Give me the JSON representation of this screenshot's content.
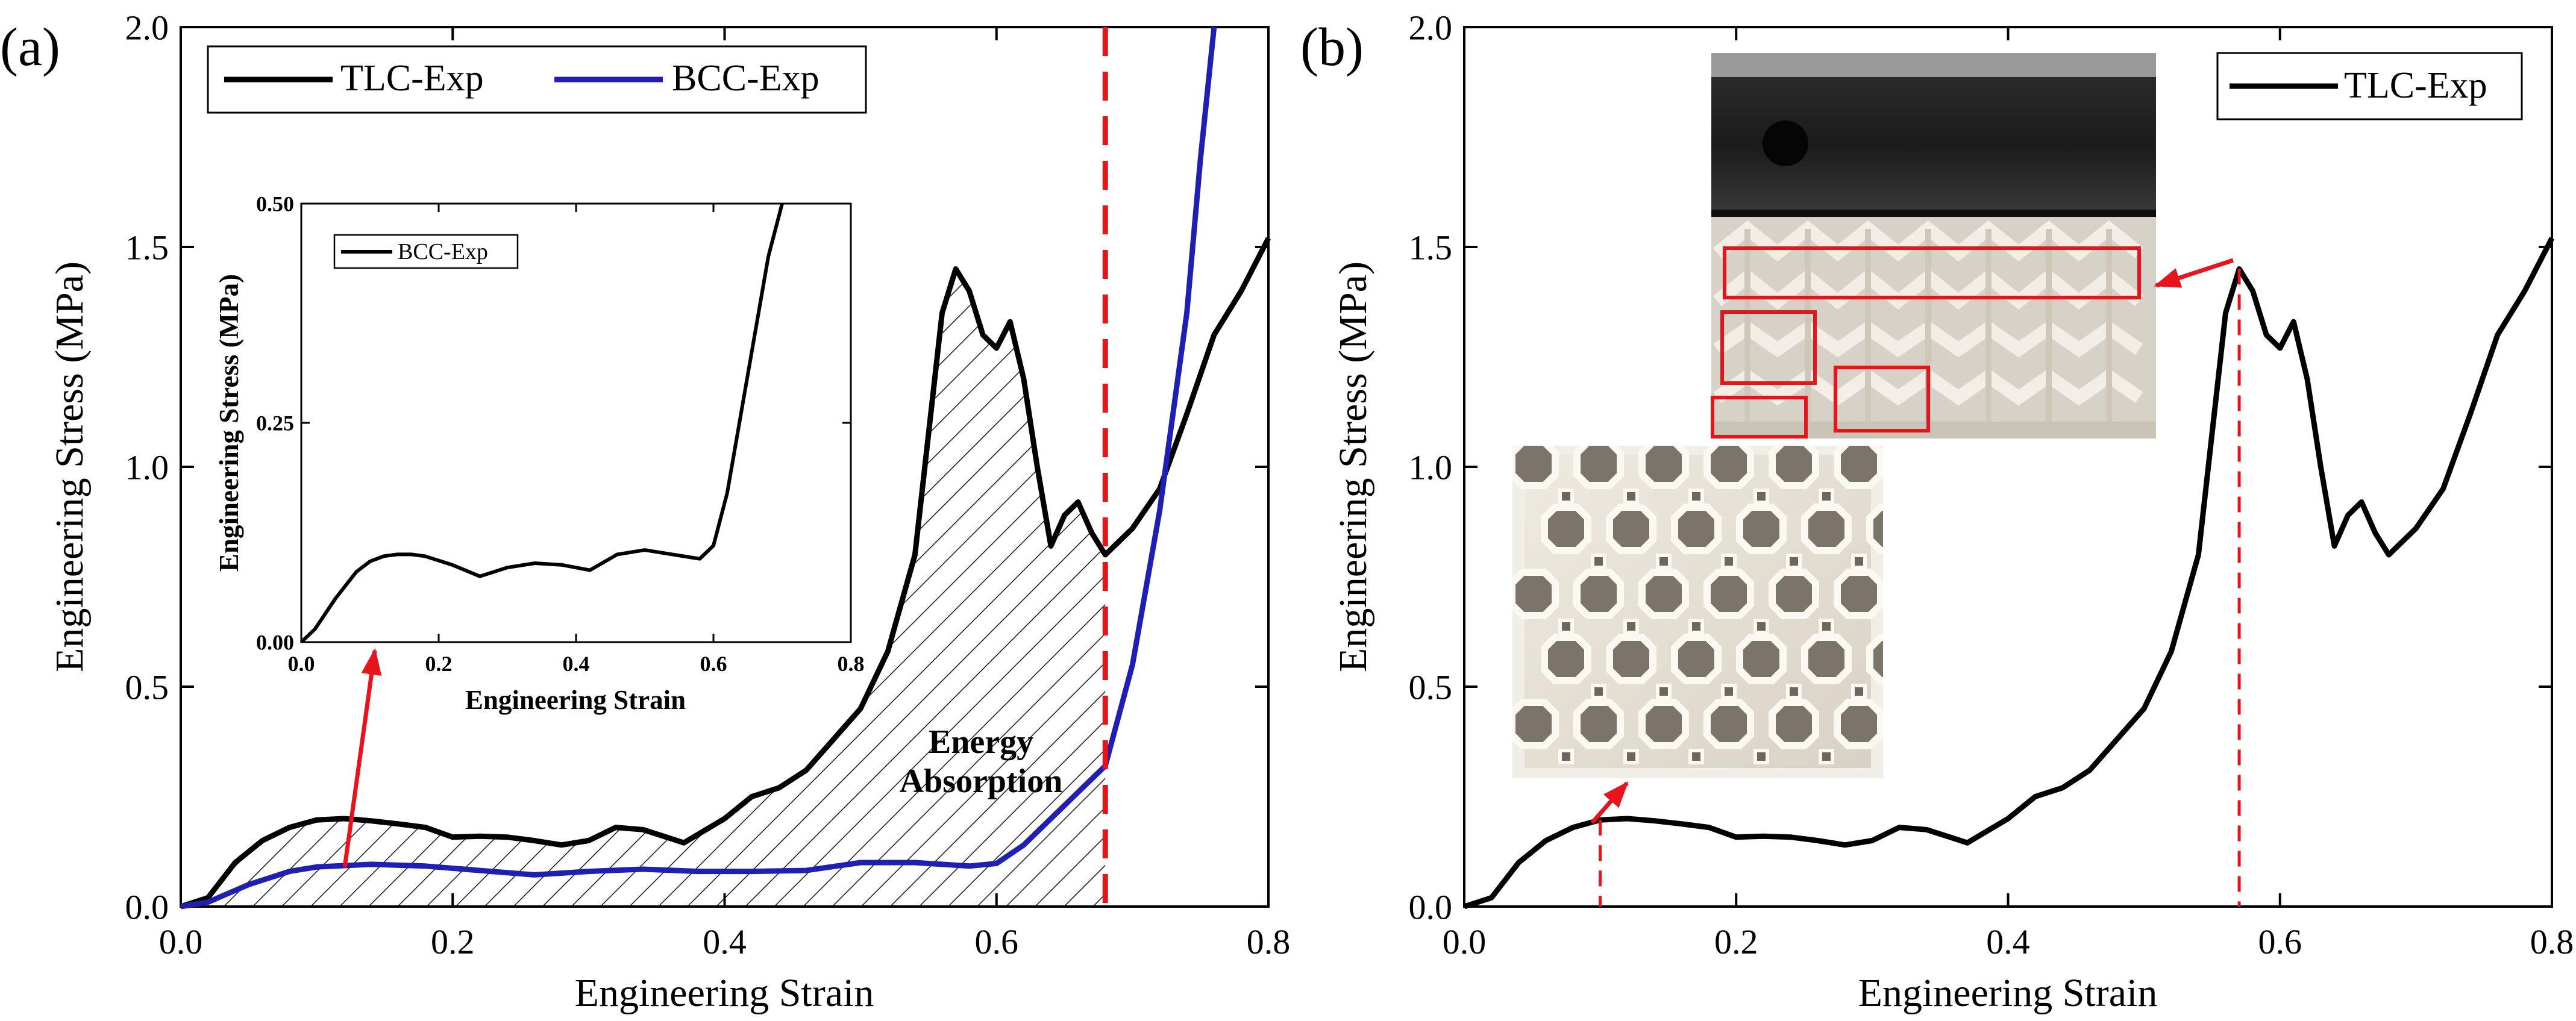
{
  "figure": {
    "description_labels": [
      "(a)",
      "(b)"
    ]
  },
  "chart_data": [
    {
      "panel": "(a)",
      "type": "line",
      "xlabel": "Engineering Strain",
      "ylabel": "Engineering Stress (MPa)",
      "xlim": [
        0,
        0.8
      ],
      "ylim": [
        0,
        2.0
      ],
      "xticks": [
        "0.0",
        "0.2",
        "0.4",
        "0.6",
        "0.8"
      ],
      "yticks": [
        "0.0",
        "0.5",
        "1.0",
        "1.5",
        "2.0"
      ],
      "legend": [
        "TLC-Exp",
        "BCC-Exp"
      ],
      "legend_position": "top-left",
      "annotations": [
        "Energy",
        "Absorption"
      ],
      "reference_line_x": 0.68,
      "shaded_region": "area under TLC-Exp curve up to 0.68 strain, hatched",
      "series": [
        {
          "name": "TLC-Exp",
          "color": "#000000",
          "x": [
            0,
            0.02,
            0.04,
            0.06,
            0.08,
            0.1,
            0.12,
            0.14,
            0.16,
            0.18,
            0.2,
            0.22,
            0.24,
            0.26,
            0.28,
            0.3,
            0.32,
            0.34,
            0.36,
            0.37,
            0.4,
            0.42,
            0.44,
            0.46,
            0.48,
            0.5,
            0.52,
            0.54,
            0.56,
            0.57,
            0.58,
            0.59,
            0.6,
            0.61,
            0.62,
            0.63,
            0.64,
            0.65,
            0.66,
            0.67,
            0.68,
            0.7,
            0.72,
            0.74,
            0.76,
            0.78,
            0.8
          ],
          "y": [
            0,
            0.02,
            0.1,
            0.15,
            0.18,
            0.197,
            0.2,
            0.195,
            0.188,
            0.18,
            0.158,
            0.16,
            0.158,
            0.15,
            0.14,
            0.15,
            0.18,
            0.175,
            0.155,
            0.145,
            0.2,
            0.25,
            0.27,
            0.31,
            0.38,
            0.45,
            0.58,
            0.8,
            1.35,
            1.45,
            1.4,
            1.3,
            1.27,
            1.33,
            1.2,
            1.0,
            0.82,
            0.89,
            0.92,
            0.85,
            0.8,
            0.86,
            0.95,
            1.12,
            1.3,
            1.4,
            1.52
          ]
        },
        {
          "name": "BCC-Exp",
          "color": "#1f1fb4",
          "x": [
            0,
            0.02,
            0.05,
            0.08,
            0.1,
            0.14,
            0.18,
            0.22,
            0.26,
            0.3,
            0.34,
            0.38,
            0.42,
            0.46,
            0.5,
            0.54,
            0.58,
            0.6,
            0.62,
            0.64,
            0.66,
            0.68,
            0.7,
            0.72,
            0.74,
            0.75,
            0.76
          ],
          "y": [
            0,
            0.01,
            0.05,
            0.08,
            0.09,
            0.096,
            0.092,
            0.082,
            0.072,
            0.08,
            0.085,
            0.08,
            0.08,
            0.082,
            0.1,
            0.1,
            0.092,
            0.098,
            0.14,
            0.2,
            0.26,
            0.32,
            0.55,
            0.9,
            1.35,
            1.7,
            2.0
          ]
        }
      ],
      "inset": {
        "type": "line",
        "xlabel": "Engineering Strain",
        "ylabel": "Engineering Stress (MPa)",
        "xlim": [
          0,
          0.8
        ],
        "ylim": [
          0,
          0.5
        ],
        "xticks": [
          "0.0",
          "0.2",
          "0.4",
          "0.6",
          "0.8"
        ],
        "yticks": [
          "0.00",
          "0.25",
          "0.50"
        ],
        "legend": [
          "BCC-Exp"
        ],
        "series": [
          {
            "name": "BCC-Exp",
            "color": "#000000",
            "x": [
              0,
              0.02,
              0.05,
              0.08,
              0.1,
              0.12,
              0.14,
              0.16,
              0.18,
              0.22,
              0.26,
              0.3,
              0.34,
              0.38,
              0.42,
              0.46,
              0.5,
              0.54,
              0.58,
              0.6,
              0.62,
              0.64,
              0.66,
              0.68,
              0.7
            ],
            "y": [
              0,
              0.015,
              0.05,
              0.08,
              0.092,
              0.098,
              0.1,
              0.1,
              0.098,
              0.088,
              0.075,
              0.085,
              0.09,
              0.088,
              0.082,
              0.1,
              0.105,
              0.1,
              0.095,
              0.11,
              0.17,
              0.26,
              0.35,
              0.44,
              0.5
            ]
          }
        ]
      }
    },
    {
      "panel": "(b)",
      "type": "line",
      "xlabel": "Engineering Strain",
      "ylabel": "Engineering Stress (MPa)",
      "xlim": [
        0,
        0.8
      ],
      "ylim": [
        0,
        2.0
      ],
      "xticks": [
        "0.0",
        "0.2",
        "0.4",
        "0.6",
        "0.8"
      ],
      "yticks": [
        "0.0",
        "0.5",
        "1.0",
        "1.5",
        "2.0"
      ],
      "legend": [
        "TLC-Exp"
      ],
      "legend_position": "top-right",
      "marker_lines_x": [
        0.1,
        0.57
      ],
      "series": [
        {
          "name": "TLC-Exp",
          "color": "#000000",
          "x": [
            0,
            0.02,
            0.04,
            0.06,
            0.08,
            0.1,
            0.12,
            0.14,
            0.16,
            0.18,
            0.2,
            0.22,
            0.24,
            0.26,
            0.28,
            0.3,
            0.32,
            0.34,
            0.36,
            0.37,
            0.4,
            0.42,
            0.44,
            0.46,
            0.48,
            0.5,
            0.52,
            0.54,
            0.56,
            0.57,
            0.58,
            0.59,
            0.6,
            0.61,
            0.62,
            0.63,
            0.64,
            0.65,
            0.66,
            0.67,
            0.68,
            0.7,
            0.72,
            0.74,
            0.76,
            0.78,
            0.8
          ],
          "y": [
            0,
            0.02,
            0.1,
            0.15,
            0.18,
            0.197,
            0.2,
            0.195,
            0.188,
            0.18,
            0.158,
            0.16,
            0.158,
            0.15,
            0.14,
            0.15,
            0.18,
            0.175,
            0.155,
            0.145,
            0.2,
            0.25,
            0.27,
            0.31,
            0.38,
            0.45,
            0.58,
            0.8,
            1.35,
            1.45,
            1.4,
            1.3,
            1.27,
            1.33,
            1.2,
            1.0,
            0.82,
            0.89,
            0.92,
            0.85,
            0.8,
            0.86,
            0.95,
            1.12,
            1.3,
            1.4,
            1.52
          ]
        }
      ]
    }
  ]
}
